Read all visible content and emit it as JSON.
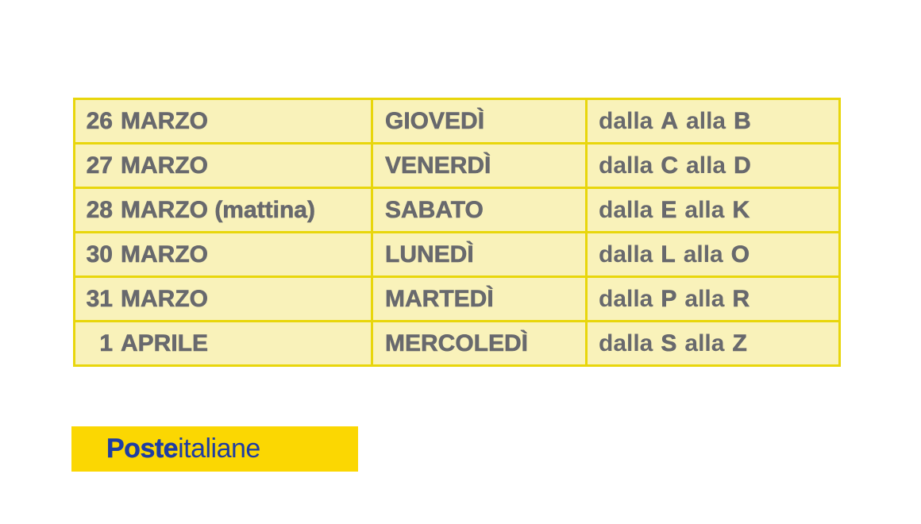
{
  "table": {
    "cell_background": "#f9f2ba",
    "border_color": "#e8d60c",
    "text_color": "#68696d",
    "rows": [
      {
        "day": "26",
        "date_label": "MARZO",
        "weekday": "GIOVEDÌ",
        "from_word": "dalla",
        "from_letter": "A",
        "to_word": "alla",
        "to_letter": "B"
      },
      {
        "day": "27",
        "date_label": "MARZO",
        "weekday": "VENERDÌ",
        "from_word": "dalla",
        "from_letter": "C",
        "to_word": "alla",
        "to_letter": "D"
      },
      {
        "day": "28",
        "date_label": "MARZO (mattina)",
        "weekday": "SABATO",
        "from_word": "dalla",
        "from_letter": "E",
        "to_word": "alla",
        "to_letter": "K"
      },
      {
        "day": "30",
        "date_label": "MARZO",
        "weekday": "LUNEDÌ",
        "from_word": "dalla",
        "from_letter": "L",
        "to_word": "alla",
        "to_letter": "O"
      },
      {
        "day": "31",
        "date_label": "MARZO",
        "weekday": "MARTEDÌ",
        "from_word": "dalla",
        "from_letter": "P",
        "to_word": "alla",
        "to_letter": "R"
      },
      {
        "day": "1",
        "date_label": "APRILE",
        "weekday": "MERCOLEDÌ",
        "from_word": "dalla",
        "from_letter": "S",
        "to_word": "alla",
        "to_letter": "Z"
      }
    ]
  },
  "logo": {
    "text_bold": "Poste",
    "text_regular": "italiane",
    "background": "#fbd702",
    "text_color": "#1e3da3"
  }
}
